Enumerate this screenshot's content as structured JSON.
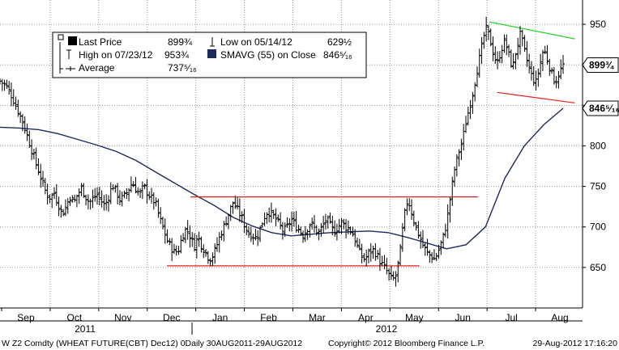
{
  "chart_data": {
    "type": "line",
    "subtype": "ohlc-bars",
    "x_labels": [
      "Sep",
      "Oct",
      "Nov",
      "Dec",
      "Jan",
      "Feb",
      "Mar",
      "Apr",
      "May",
      "Jun",
      "Jul",
      "Aug"
    ],
    "years": [
      "2011",
      "2012"
    ],
    "ylim": [
      600,
      980
    ],
    "yticks": [
      "650",
      "700",
      "750",
      "800",
      "850",
      "900",
      "950"
    ],
    "price_tags": [
      {
        "value": 899.75,
        "label": "899¾"
      },
      {
        "value": 846.31,
        "label": "846⁵⁄₁₆"
      }
    ],
    "legend": [
      {
        "marker": "filled-square",
        "label": "Last Price",
        "value": "899¾"
      },
      {
        "marker": "low",
        "label": "Low on 05/14/12",
        "value": "629½"
      },
      {
        "marker": "high",
        "label": "High on 07/23/12",
        "value": "953¾"
      },
      {
        "marker": "navy-square",
        "label": "SMAVG (55) on Close",
        "value": "846⁵⁄₁₆"
      },
      {
        "marker": "avg",
        "label": "Average",
        "value": "737⁵⁄₁₆"
      }
    ],
    "series": [
      {
        "label": "Last Price",
        "kind": "ohlc",
        "color": "#000000",
        "points": [
          [
            0,
            880
          ],
          [
            0.3,
            875
          ],
          [
            0.6,
            862
          ],
          [
            0.9,
            845
          ],
          [
            1.2,
            828
          ],
          [
            1.5,
            805
          ],
          [
            1.8,
            782
          ],
          [
            2.0,
            768
          ],
          [
            2.2,
            754
          ],
          [
            2.4,
            740
          ],
          [
            2.6,
            736
          ],
          [
            2.8,
            742
          ],
          [
            3.0,
            728
          ],
          [
            3.2,
            716
          ],
          [
            3.4,
            725
          ],
          [
            3.6,
            738
          ],
          [
            3.8,
            730
          ],
          [
            4.0,
            740
          ],
          [
            4.2,
            748
          ],
          [
            4.4,
            738
          ],
          [
            4.6,
            730
          ],
          [
            4.8,
            735
          ],
          [
            5.0,
            740
          ],
          [
            5.2,
            733
          ],
          [
            5.4,
            726
          ],
          [
            5.6,
            738
          ],
          [
            5.8,
            752
          ],
          [
            6.0,
            742
          ],
          [
            6.2,
            733
          ],
          [
            6.4,
            738
          ],
          [
            6.6,
            745
          ],
          [
            6.8,
            755
          ],
          [
            7.0,
            747
          ],
          [
            7.2,
            740
          ],
          [
            7.4,
            750
          ],
          [
            7.6,
            742
          ],
          [
            7.8,
            735
          ],
          [
            8.0,
            730
          ],
          [
            8.2,
            712
          ],
          [
            8.4,
            698
          ],
          [
            8.6,
            684
          ],
          [
            8.8,
            675
          ],
          [
            9.0,
            668
          ],
          [
            9.2,
            672
          ],
          [
            9.4,
            690
          ],
          [
            9.6,
            698
          ],
          [
            9.8,
            688
          ],
          [
            10.0,
            676
          ],
          [
            10.2,
            688
          ],
          [
            10.4,
            676
          ],
          [
            10.6,
            668
          ],
          [
            10.8,
            660
          ],
          [
            11.0,
            666
          ],
          [
            11.2,
            680
          ],
          [
            11.4,
            693
          ],
          [
            11.6,
            705
          ],
          [
            11.8,
            718
          ],
          [
            12.0,
            730
          ],
          [
            12.2,
            722
          ],
          [
            12.4,
            714
          ],
          [
            12.6,
            702
          ],
          [
            12.8,
            692
          ],
          [
            13.0,
            690
          ],
          [
            13.2,
            686
          ],
          [
            13.4,
            698
          ],
          [
            13.6,
            712
          ],
          [
            13.8,
            720
          ],
          [
            14.0,
            715
          ],
          [
            14.2,
            710
          ],
          [
            14.4,
            702
          ],
          [
            14.6,
            694
          ],
          [
            14.8,
            700
          ],
          [
            15.0,
            710
          ],
          [
            15.2,
            702
          ],
          [
            15.4,
            697
          ],
          [
            15.6,
            690
          ],
          [
            15.8,
            697
          ],
          [
            16.0,
            705
          ],
          [
            16.2,
            698
          ],
          [
            16.4,
            692
          ],
          [
            16.6,
            700
          ],
          [
            16.8,
            710
          ],
          [
            17.0,
            702
          ],
          [
            17.2,
            694
          ],
          [
            17.4,
            700
          ],
          [
            17.6,
            706
          ],
          [
            17.8,
            700
          ],
          [
            18.0,
            698
          ],
          [
            18.2,
            690
          ],
          [
            18.4,
            676
          ],
          [
            18.6,
            664
          ],
          [
            18.8,
            660
          ],
          [
            19.0,
            668
          ],
          [
            19.2,
            672
          ],
          [
            19.4,
            666
          ],
          [
            19.6,
            656
          ],
          [
            19.8,
            650
          ],
          [
            20.0,
            642
          ],
          [
            20.2,
            634
          ],
          [
            20.4,
            640
          ],
          [
            20.6,
            668
          ],
          [
            20.8,
            710
          ],
          [
            21.0,
            735
          ],
          [
            21.2,
            718
          ],
          [
            21.4,
            700
          ],
          [
            21.6,
            688
          ],
          [
            21.8,
            676
          ],
          [
            22.0,
            668
          ],
          [
            22.2,
            664
          ],
          [
            22.4,
            660
          ],
          [
            22.6,
            672
          ],
          [
            22.8,
            685
          ],
          [
            23.0,
            705
          ],
          [
            23.2,
            738
          ],
          [
            23.4,
            770
          ],
          [
            23.6,
            790
          ],
          [
            23.8,
            805
          ],
          [
            24.0,
            830
          ],
          [
            24.2,
            850
          ],
          [
            24.4,
            872
          ],
          [
            24.6,
            898
          ],
          [
            24.8,
            920
          ],
          [
            25.0,
            946
          ],
          [
            25.2,
            935
          ],
          [
            25.4,
            915
          ],
          [
            25.6,
            900
          ],
          [
            25.8,
            918
          ],
          [
            26.0,
            930
          ],
          [
            26.2,
            912
          ],
          [
            26.4,
            896
          ],
          [
            26.6,
            920
          ],
          [
            26.8,
            938
          ],
          [
            27.0,
            918
          ],
          [
            27.2,
            900
          ],
          [
            27.4,
            885
          ],
          [
            27.6,
            878
          ],
          [
            27.8,
            900
          ],
          [
            28.0,
            920
          ],
          [
            28.2,
            906
          ],
          [
            28.4,
            890
          ],
          [
            28.6,
            878
          ],
          [
            28.8,
            890
          ],
          [
            29.0,
            899.75
          ]
        ]
      },
      {
        "label": "SMAVG (55) on Close",
        "kind": "line",
        "color": "#1f2a5c",
        "points": [
          [
            0,
            823
          ],
          [
            1,
            822
          ],
          [
            2,
            820
          ],
          [
            3,
            815
          ],
          [
            4,
            808
          ],
          [
            5,
            801
          ],
          [
            6,
            793
          ],
          [
            7,
            782
          ],
          [
            8,
            768
          ],
          [
            9,
            754
          ],
          [
            10,
            740
          ],
          [
            11,
            727
          ],
          [
            12,
            712
          ],
          [
            13,
            701
          ],
          [
            14,
            693
          ],
          [
            15,
            689
          ],
          [
            16,
            691
          ],
          [
            17,
            693
          ],
          [
            18,
            694
          ],
          [
            19,
            695
          ],
          [
            20,
            693
          ],
          [
            21,
            687
          ],
          [
            22,
            680
          ],
          [
            23,
            673
          ],
          [
            24,
            678
          ],
          [
            25,
            700
          ],
          [
            26,
            760
          ],
          [
            27,
            800
          ],
          [
            28,
            826
          ],
          [
            29,
            846.31
          ]
        ]
      },
      {
        "label": "upper-channel-red",
        "kind": "line",
        "color": "#e0201c",
        "points": [
          [
            9.8,
            737
          ],
          [
            24.6,
            737
          ]
        ]
      },
      {
        "label": "lower-channel-red",
        "kind": "line",
        "color": "#e0201c",
        "points": [
          [
            8.6,
            652
          ],
          [
            21.6,
            652
          ]
        ]
      },
      {
        "label": "upper-flag-green",
        "kind": "line",
        "color": "#2bd12b",
        "points": [
          [
            25.2,
            953
          ],
          [
            29.6,
            932
          ]
        ]
      },
      {
        "label": "lower-flag-red",
        "kind": "line",
        "color": "#e0201c",
        "points": [
          [
            25.6,
            866
          ],
          [
            29.6,
            853
          ]
        ]
      }
    ],
    "grid": true,
    "legend_position": "top-left"
  },
  "footer": {
    "left": "W Z2 Comdty (WHEAT FUTURE(CBT) Dec12) 0Daily 30AUG2011-29AUG2012",
    "center": "Copyright© 2012 Bloomberg Finance L.P.",
    "right": "29-Aug-2012 17:16:20"
  }
}
